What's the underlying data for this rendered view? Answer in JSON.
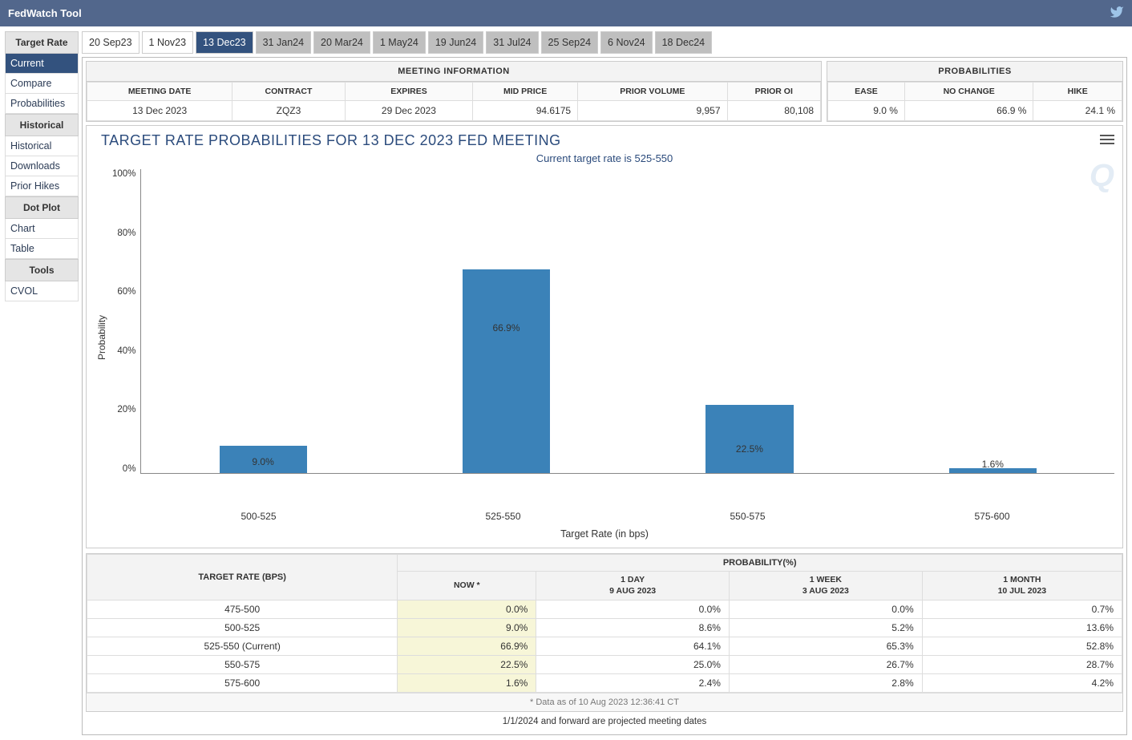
{
  "app": {
    "title": "FedWatch Tool"
  },
  "sidebar": {
    "groups": [
      {
        "title": "Target Rate",
        "items": [
          {
            "label": "Current",
            "active": true
          },
          {
            "label": "Compare"
          },
          {
            "label": "Probabilities"
          }
        ]
      },
      {
        "title": "Historical",
        "items": [
          {
            "label": "Historical"
          },
          {
            "label": "Downloads"
          },
          {
            "label": "Prior Hikes"
          }
        ]
      },
      {
        "title": "Dot Plot",
        "items": [
          {
            "label": "Chart"
          },
          {
            "label": "Table"
          }
        ]
      },
      {
        "title": "Tools",
        "items": [
          {
            "label": "CVOL"
          }
        ]
      }
    ]
  },
  "tabs": [
    {
      "label": "20 Sep23",
      "style": "light"
    },
    {
      "label": "1 Nov23",
      "style": "light"
    },
    {
      "label": "13 Dec23",
      "style": "active"
    },
    {
      "label": "31 Jan24",
      "style": "grey"
    },
    {
      "label": "20 Mar24",
      "style": "grey"
    },
    {
      "label": "1 May24",
      "style": "grey"
    },
    {
      "label": "19 Jun24",
      "style": "grey"
    },
    {
      "label": "31 Jul24",
      "style": "grey"
    },
    {
      "label": "25 Sep24",
      "style": "grey"
    },
    {
      "label": "6 Nov24",
      "style": "grey"
    },
    {
      "label": "18 Dec24",
      "style": "grey"
    }
  ],
  "meeting_info": {
    "title": "MEETING INFORMATION",
    "headers": [
      "MEETING DATE",
      "CONTRACT",
      "EXPIRES",
      "MID PRICE",
      "PRIOR VOLUME",
      "PRIOR OI"
    ],
    "values": [
      "13 Dec 2023",
      "ZQZ3",
      "29 Dec 2023",
      "94.6175",
      "9,957",
      "80,108"
    ]
  },
  "prob_summary": {
    "title": "PROBABILITIES",
    "headers": [
      "EASE",
      "NO CHANGE",
      "HIKE"
    ],
    "values": [
      "9.0 %",
      "66.9 %",
      "24.1 %"
    ]
  },
  "chart": {
    "type": "bar",
    "title": "TARGET RATE PROBABILITIES FOR 13 DEC 2023 FED MEETING",
    "subtitle": "Current target rate is 525-550",
    "ylabel": "Probability",
    "xlabel": "Target Rate (in bps)",
    "ylim": [
      0,
      100
    ],
    "ytick_step": 20,
    "yticks": [
      "100%",
      "80%",
      "60%",
      "40%",
      "20%",
      "0%"
    ],
    "categories": [
      "500-525",
      "525-550",
      "550-575",
      "575-600"
    ],
    "values": [
      9.0,
      66.9,
      22.5,
      1.6
    ],
    "value_labels": [
      "9.0%",
      "66.9%",
      "22.5%",
      "1.6%"
    ],
    "bar_color": "#3b82b8",
    "bar_width_pct": 9,
    "background_color": "#ffffff",
    "axis_color": "#888888",
    "title_color": "#2b4b7c",
    "title_fontsize": 18,
    "label_fontsize": 12
  },
  "prob_table": {
    "col1_header": "TARGET RATE (BPS)",
    "col2_header": "PROBABILITY(%)",
    "sub_headers": [
      {
        "top": "NOW *",
        "bottom": ""
      },
      {
        "top": "1 DAY",
        "bottom": "9 AUG 2023"
      },
      {
        "top": "1 WEEK",
        "bottom": "3 AUG 2023"
      },
      {
        "top": "1 MONTH",
        "bottom": "10 JUL 2023"
      }
    ],
    "rows": [
      {
        "label": "475-500",
        "cells": [
          "0.0%",
          "0.0%",
          "0.0%",
          "0.7%"
        ]
      },
      {
        "label": "500-525",
        "cells": [
          "9.0%",
          "8.6%",
          "5.2%",
          "13.6%"
        ]
      },
      {
        "label": "525-550 (Current)",
        "cells": [
          "66.9%",
          "64.1%",
          "65.3%",
          "52.8%"
        ]
      },
      {
        "label": "550-575",
        "cells": [
          "22.5%",
          "25.0%",
          "26.7%",
          "28.7%"
        ]
      },
      {
        "label": "575-600",
        "cells": [
          "1.6%",
          "2.4%",
          "2.8%",
          "4.2%"
        ]
      }
    ],
    "footer": "* Data as of 10 Aug 2023 12:36:41 CT",
    "now_highlight": "#f7f6d8"
  },
  "proj_note": "1/1/2024 and forward are projected meeting dates"
}
